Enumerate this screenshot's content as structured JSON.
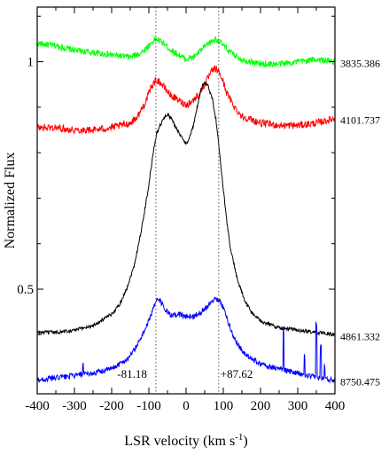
{
  "chart_data": {
    "type": "line",
    "title": "",
    "xlabel": "LSR velocity (km s",
    "xlabel_sup": "-1",
    "xlabel_close": ")",
    "ylabel": "Normalized Flux",
    "xlim": [
      -400,
      400
    ],
    "ylim": [
      0.27,
      1.12
    ],
    "x_ticks": [
      -400,
      -300,
      -200,
      -100,
      0,
      100,
      200,
      300,
      400
    ],
    "x_tick_labels": [
      "-400",
      "-300",
      "-200",
      "-100",
      "0",
      "100",
      "200",
      "300",
      "400"
    ],
    "y_ticks": [
      0.5,
      1.0
    ],
    "y_tick_labels": [
      "0.5",
      "1"
    ],
    "grid": false,
    "reference_lines": [
      {
        "x": -81.18,
        "label": "-81.18"
      },
      {
        "x": 87.62,
        "label": "+87.62"
      }
    ],
    "series": [
      {
        "name": "3835.386",
        "color": "#00ff00",
        "noise": 0.007,
        "x": [
          -400,
          -350,
          -300,
          -250,
          -200,
          -150,
          -120,
          -100,
          -90,
          -80,
          -60,
          -40,
          -20,
          0,
          20,
          40,
          60,
          80,
          90,
          100,
          120,
          150,
          200,
          250,
          300,
          350,
          400
        ],
        "values": [
          1.04,
          1.035,
          1.025,
          1.02,
          1.015,
          1.01,
          1.02,
          1.035,
          1.045,
          1.05,
          1.04,
          1.025,
          1.015,
          1.005,
          1.01,
          1.025,
          1.04,
          1.05,
          1.045,
          1.035,
          1.02,
          1.005,
          0.995,
          0.995,
          1.0,
          1.005,
          1.0
        ]
      },
      {
        "name": "4101.737",
        "color": "#ff0000",
        "noise": 0.008,
        "x": [
          -400,
          -350,
          -300,
          -250,
          -200,
          -150,
          -130,
          -110,
          -100,
          -90,
          -80,
          -70,
          -60,
          -40,
          -20,
          0,
          20,
          40,
          60,
          70,
          80,
          90,
          100,
          110,
          130,
          150,
          200,
          250,
          300,
          350,
          400
        ],
        "values": [
          0.855,
          0.855,
          0.85,
          0.85,
          0.855,
          0.865,
          0.88,
          0.91,
          0.93,
          0.95,
          0.96,
          0.955,
          0.945,
          0.925,
          0.915,
          0.905,
          0.915,
          0.935,
          0.965,
          0.98,
          0.985,
          0.975,
          0.955,
          0.93,
          0.9,
          0.88,
          0.865,
          0.86,
          0.86,
          0.865,
          0.875
        ]
      },
      {
        "name": "4861.332",
        "color": "#000000",
        "noise": 0.004,
        "x": [
          -400,
          -350,
          -300,
          -250,
          -200,
          -180,
          -160,
          -140,
          -120,
          -100,
          -90,
          -80,
          -70,
          -60,
          -50,
          -40,
          -30,
          -20,
          -10,
          0,
          10,
          20,
          30,
          40,
          50,
          60,
          70,
          80,
          90,
          100,
          110,
          120,
          140,
          160,
          180,
          200,
          250,
          300,
          350,
          400
        ],
        "values": [
          0.405,
          0.405,
          0.41,
          0.42,
          0.445,
          0.465,
          0.5,
          0.55,
          0.63,
          0.73,
          0.79,
          0.84,
          0.86,
          0.875,
          0.885,
          0.875,
          0.86,
          0.845,
          0.83,
          0.82,
          0.835,
          0.86,
          0.9,
          0.94,
          0.955,
          0.945,
          0.92,
          0.875,
          0.8,
          0.72,
          0.645,
          0.585,
          0.515,
          0.47,
          0.445,
          0.43,
          0.415,
          0.41,
          0.405,
          0.4
        ]
      },
      {
        "name": "8750.475",
        "color": "#0000ff",
        "noise": 0.006,
        "x": [
          -400,
          -350,
          -300,
          -250,
          -200,
          -160,
          -140,
          -120,
          -100,
          -90,
          -80,
          -70,
          -60,
          -40,
          -20,
          0,
          20,
          40,
          60,
          70,
          80,
          90,
          100,
          110,
          130,
          160,
          200,
          250,
          300,
          350,
          400
        ],
        "values": [
          0.3,
          0.305,
          0.31,
          0.315,
          0.325,
          0.345,
          0.365,
          0.395,
          0.43,
          0.455,
          0.475,
          0.475,
          0.46,
          0.44,
          0.445,
          0.44,
          0.44,
          0.45,
          0.465,
          0.475,
          0.48,
          0.475,
          0.46,
          0.435,
          0.39,
          0.355,
          0.335,
          0.325,
          0.315,
          0.305,
          0.3
        ]
      }
    ]
  }
}
